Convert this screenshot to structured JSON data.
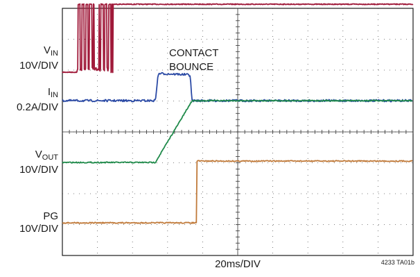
{
  "chart_data": {
    "type": "line",
    "xlabel": "20ms/DIV",
    "x_unit": "ms",
    "x_range": [
      0,
      200
    ],
    "divisions": {
      "x": 10,
      "y": 8
    },
    "grid": true,
    "annotation": "CONTACT BOUNCE",
    "annotation_lines": [
      "CONTACT",
      "BOUNCE"
    ],
    "figure_code": "4233 TA01b",
    "series": [
      {
        "name": "VIN",
        "name_main": "V",
        "name_sub": "IN",
        "scale": "10V/DIV",
        "color": "#a01a3a",
        "points": [
          [
            0,
            0
          ],
          [
            8.5,
            0
          ],
          [
            8.6,
            2.2
          ],
          [
            27.5,
            2.2
          ],
          [
            27.6,
            0
          ],
          [
            28,
            0
          ],
          [
            28.1,
            2.2
          ],
          [
            28.5,
            2.2
          ],
          [
            28.6,
            0
          ],
          [
            28.9,
            0
          ],
          [
            29,
            2.2
          ],
          [
            200,
            2.2
          ]
        ],
        "bounce_window_ms": [
          8.5,
          27.6
        ]
      },
      {
        "name": "IIN",
        "name_main": "I",
        "name_sub": "IN",
        "scale": "0.2A/DIV",
        "color": "#2b4aa5",
        "points": [
          [
            0,
            0
          ],
          [
            53,
            0
          ],
          [
            54.5,
            0.78
          ],
          [
            55,
            0.88
          ],
          [
            72,
            0.84
          ],
          [
            73,
            0.8
          ],
          [
            73.8,
            0.02
          ],
          [
            74,
            0
          ],
          [
            200,
            0
          ]
        ]
      },
      {
        "name": "VOUT",
        "name_main": "V",
        "name_sub": "OUT",
        "scale": "10V/DIV",
        "color": "#1f8a4a",
        "points": [
          [
            0,
            0
          ],
          [
            53,
            0
          ],
          [
            74,
            2.0
          ],
          [
            200,
            2.0
          ]
        ]
      },
      {
        "name": "PG",
        "name_main": "PG",
        "name_sub": "",
        "scale": "10V/DIV",
        "color": "#c07a3a",
        "points": [
          [
            0,
            0
          ],
          [
            76.5,
            0
          ],
          [
            76.6,
            2.0
          ],
          [
            200,
            2.0
          ]
        ]
      }
    ]
  }
}
